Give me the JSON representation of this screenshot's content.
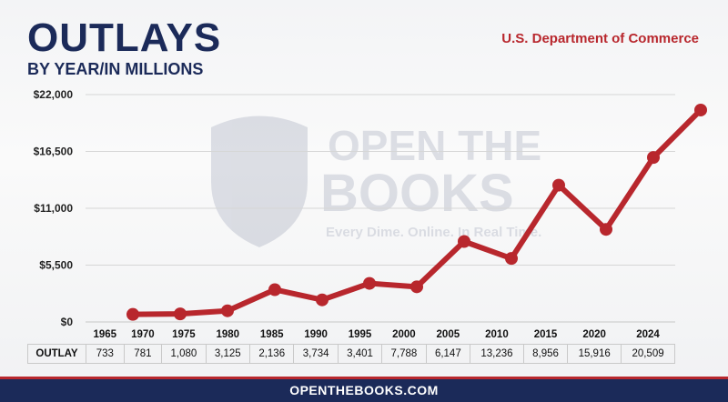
{
  "header": {
    "title": "OUTLAYS",
    "subtitle": "BY YEAR/IN MILLIONS",
    "department": "U.S. Department of Commerce"
  },
  "watermark": {
    "line1": "OPEN THE",
    "line2": "BOOKS",
    "tagline": "Every Dime. Online. In Real Time."
  },
  "footer": {
    "text": "OPENTHEBOOKS.COM"
  },
  "colors": {
    "line": "#b8272d",
    "navy": "#1b2a59",
    "grid": "#d6d6d6"
  },
  "chart_data": {
    "type": "line",
    "title": "OUTLAYS",
    "subtitle": "BY YEAR/IN MILLIONS",
    "categories": [
      "1965",
      "1970",
      "1975",
      "1980",
      "1985",
      "1990",
      "1995",
      "2000",
      "2005",
      "2010",
      "2015",
      "2020",
      "2024"
    ],
    "series": [
      {
        "values": [
          733,
          781,
          1080,
          3125,
          2136,
          3734,
          3401,
          7788,
          6147,
          13236,
          8956,
          15916,
          20509
        ]
      }
    ],
    "yticks": [
      "$0",
      "$5,500",
      "$11,000",
      "$16,500",
      "$22,000"
    ],
    "ylim": [
      0,
      22000
    ],
    "grid": true,
    "table_label": "OUTLAY",
    "table_values": [
      "733",
      "781",
      "1,080",
      "3,125",
      "2,136",
      "3,734",
      "3,401",
      "7,788",
      "6,147",
      "13,236",
      "8,956",
      "15,916",
      "20,509"
    ]
  }
}
